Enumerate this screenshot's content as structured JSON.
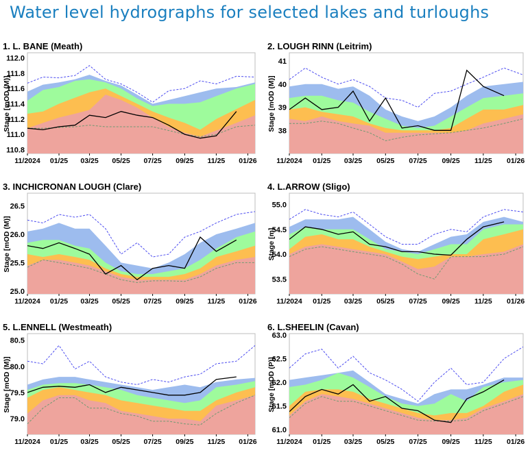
{
  "page_title": "Water level hydrographs for selected lakes and turloughs",
  "colors": {
    "max": "#4b4bf0",
    "min": "#6f9a72",
    "band_blue": "#9dbcee",
    "band_green": "#9efb9c",
    "band_orange": "#fdbe50",
    "band_red": "#eea49d",
    "observed": "#000000",
    "title": "#1a7fbf"
  },
  "chart_data": [
    {
      "type": "area",
      "title": "1. L. BANE (Meath)",
      "ylabel": "Stage [mOD (M)]",
      "ylim": [
        110.75,
        112.05
      ],
      "yticks": [
        "110.8",
        "111.0",
        "111.2",
        "111.4",
        "111.6",
        "111.8",
        "112.0"
      ],
      "xlim": [
        "2024-11-01",
        "2026-01-15"
      ],
      "xticks": [
        {
          "date": "2024-11-01",
          "label": "11/2024"
        },
        {
          "date": "2025-01-01",
          "label": "01/25"
        },
        {
          "date": "2025-03-01",
          "label": "03/25"
        },
        {
          "date": "2025-05-01",
          "label": "05/25"
        },
        {
          "date": "2025-07-01",
          "label": "07/25"
        },
        {
          "date": "2025-09-01",
          "label": "09/25"
        },
        {
          "date": "2025-11-01",
          "label": "11/25"
        },
        {
          "date": "2026-01-01",
          "label": "01/26"
        }
      ],
      "x": [
        "2024-11-01",
        "2024-12-01",
        "2025-01-01",
        "2025-02-01",
        "2025-03-01",
        "2025-04-01",
        "2025-05-01",
        "2025-06-01",
        "2025-07-01",
        "2025-08-01",
        "2025-09-01",
        "2025-10-01",
        "2025-11-01",
        "2025-12-10",
        "2026-01-15"
      ],
      "max": [
        111.67,
        111.75,
        111.74,
        111.77,
        111.9,
        111.72,
        111.66,
        111.55,
        111.42,
        111.57,
        111.6,
        111.7,
        111.66,
        111.76,
        111.75
      ],
      "band_blue": [
        111.56,
        111.65,
        111.68,
        111.72,
        111.78,
        111.7,
        111.64,
        111.52,
        111.4,
        111.45,
        111.5,
        111.55,
        111.6,
        111.62,
        111.68
      ],
      "band_green": [
        111.44,
        111.58,
        111.62,
        111.7,
        111.72,
        111.68,
        111.6,
        111.47,
        111.37,
        111.4,
        111.4,
        111.42,
        111.5,
        111.6,
        111.66
      ],
      "band_orange": [
        111.27,
        111.3,
        111.4,
        111.48,
        111.55,
        111.6,
        111.5,
        111.4,
        111.3,
        111.22,
        111.15,
        111.06,
        111.2,
        111.33,
        111.45
      ],
      "band_red": [
        111.08,
        111.15,
        111.22,
        111.27,
        111.32,
        111.52,
        111.45,
        111.35,
        111.22,
        111.1,
        111.02,
        110.97,
        111.05,
        111.15,
        111.25
      ],
      "min": [
        111.08,
        111.08,
        111.09,
        111.1,
        111.12,
        111.1,
        111.1,
        111.1,
        111.1,
        111.05,
        111.0,
        110.97,
        111.0,
        111.1,
        111.12
      ],
      "observed": [
        111.08,
        111.06,
        111.1,
        111.12,
        111.25,
        111.22,
        111.3,
        111.25,
        111.22,
        111.12,
        111.0,
        110.95,
        110.98,
        111.3,
        null
      ]
    },
    {
      "type": "area",
      "title": "2. LOUGH RINN (Leitrim)",
      "ylabel": "Stage [mOD (M)]",
      "ylim": [
        37.0,
        41.3
      ],
      "yticks": [
        "38",
        "39",
        "40",
        "41"
      ],
      "xlim": [
        "2024-11-01",
        "2026-01-15"
      ],
      "xticks": [
        {
          "date": "2024-11-01",
          "label": "11/2024"
        },
        {
          "date": "2025-01-01",
          "label": "01/25"
        },
        {
          "date": "2025-03-01",
          "label": "03/25"
        },
        {
          "date": "2025-05-01",
          "label": "05/25"
        },
        {
          "date": "2025-07-01",
          "label": "07/25"
        },
        {
          "date": "2025-09-01",
          "label": "09/25"
        },
        {
          "date": "2025-11-01",
          "label": "11/25"
        },
        {
          "date": "2026-01-01",
          "label": "01/26"
        }
      ],
      "x": [
        "2024-11-01",
        "2024-12-01",
        "2025-01-01",
        "2025-02-01",
        "2025-03-01",
        "2025-04-01",
        "2025-05-01",
        "2025-06-01",
        "2025-07-01",
        "2025-08-01",
        "2025-09-01",
        "2025-10-01",
        "2025-11-01",
        "2025-12-10",
        "2026-01-15"
      ],
      "max": [
        40.2,
        40.7,
        40.3,
        40.0,
        40.2,
        39.9,
        39.4,
        39.3,
        39.0,
        39.6,
        39.7,
        40.0,
        40.3,
        40.7,
        40.4
      ],
      "band_blue": [
        39.9,
        40.0,
        40.0,
        39.8,
        39.9,
        39.5,
        38.9,
        38.6,
        38.4,
        38.6,
        39.0,
        39.5,
        39.9,
        40.0,
        40.1
      ],
      "band_green": [
        39.4,
        39.5,
        39.5,
        39.3,
        39.2,
        38.8,
        38.5,
        38.2,
        38.1,
        38.2,
        38.6,
        39.0,
        39.4,
        39.5,
        39.6
      ],
      "band_orange": [
        38.9,
        39.0,
        38.8,
        38.7,
        38.6,
        38.3,
        38.1,
        38.0,
        38.0,
        38.0,
        38.1,
        38.5,
        38.9,
        38.9,
        39.1
      ],
      "band_red": [
        38.5,
        38.4,
        38.6,
        38.4,
        38.3,
        38.2,
        37.9,
        37.9,
        37.9,
        37.9,
        37.9,
        38.0,
        38.3,
        38.5,
        38.7
      ],
      "min": [
        38.3,
        38.3,
        38.4,
        38.3,
        38.1,
        37.9,
        37.55,
        37.7,
        37.8,
        37.85,
        37.9,
        38.0,
        38.1,
        38.3,
        38.5
      ],
      "observed": [
        38.9,
        39.4,
        38.9,
        39.0,
        39.7,
        38.4,
        39.4,
        38.1,
        38.2,
        38.0,
        38.0,
        40.6,
        39.9,
        39.5,
        null
      ]
    },
    {
      "type": "area",
      "title": "3. INCHICRONAN LOUGH (Clare)",
      "ylabel": "Stage [mOD (M)]",
      "ylim": [
        24.95,
        26.7
      ],
      "yticks": [
        "25.0",
        "25.5",
        "26.0",
        "26.5"
      ],
      "xlim": [
        "2024-11-01",
        "2026-01-15"
      ],
      "xticks": [
        {
          "date": "2024-11-01",
          "label": "11/2024"
        },
        {
          "date": "2025-01-01",
          "label": "01/25"
        },
        {
          "date": "2025-03-01",
          "label": "03/25"
        },
        {
          "date": "2025-05-01",
          "label": "05/25"
        },
        {
          "date": "2025-07-01",
          "label": "07/25"
        },
        {
          "date": "2025-09-01",
          "label": "09/25"
        },
        {
          "date": "2025-11-01",
          "label": "11/25"
        },
        {
          "date": "2026-01-01",
          "label": "01/26"
        }
      ],
      "x": [
        "2024-11-01",
        "2024-12-01",
        "2025-01-01",
        "2025-02-01",
        "2025-03-01",
        "2025-04-01",
        "2025-05-01",
        "2025-06-01",
        "2025-07-01",
        "2025-08-01",
        "2025-09-01",
        "2025-10-01",
        "2025-11-01",
        "2025-12-10",
        "2026-01-15"
      ],
      "max": [
        26.25,
        26.2,
        26.35,
        26.3,
        26.35,
        26.1,
        25.65,
        25.85,
        25.6,
        25.65,
        25.95,
        26.05,
        26.2,
        26.35,
        26.4
      ],
      "band_blue": [
        26.05,
        26.1,
        26.2,
        26.1,
        26.1,
        25.8,
        25.5,
        25.45,
        25.4,
        25.5,
        25.65,
        25.85,
        26.0,
        26.1,
        26.2
      ],
      "band_green": [
        25.85,
        25.9,
        25.9,
        25.8,
        25.75,
        25.5,
        25.35,
        25.3,
        25.3,
        25.35,
        25.4,
        25.55,
        25.75,
        25.95,
        26.05
      ],
      "band_orange": [
        25.65,
        25.6,
        25.65,
        25.6,
        25.55,
        25.4,
        25.3,
        25.25,
        25.25,
        25.25,
        25.3,
        25.4,
        25.6,
        25.7,
        25.8
      ],
      "band_red": [
        25.45,
        25.55,
        25.55,
        25.5,
        25.45,
        25.35,
        25.25,
        25.2,
        25.2,
        25.2,
        25.2,
        25.3,
        25.45,
        25.55,
        25.6
      ],
      "min": [
        25.42,
        25.55,
        25.5,
        25.45,
        25.4,
        25.3,
        25.2,
        25.15,
        25.18,
        25.18,
        25.17,
        25.25,
        25.4,
        25.5,
        25.5
      ],
      "observed": [
        25.8,
        25.75,
        25.85,
        25.75,
        25.65,
        25.3,
        25.45,
        25.2,
        25.4,
        25.45,
        25.4,
        25.95,
        25.7,
        25.9,
        null
      ]
    },
    {
      "type": "area",
      "title": "4. L.ARROW (Sligo)",
      "ylabel": "Stage [m]",
      "ylim": [
        53.2,
        55.2
      ],
      "yticks": [
        "53.5",
        "54.0",
        "54.5",
        "55.0"
      ],
      "xlim": [
        "2024-11-01",
        "2026-01-15"
      ],
      "xticks": [
        {
          "date": "2024-11-01",
          "label": "11/2024"
        },
        {
          "date": "2025-01-01",
          "label": "01/25"
        },
        {
          "date": "2025-03-01",
          "label": "03/25"
        },
        {
          "date": "2025-05-01",
          "label": "05/25"
        },
        {
          "date": "2025-07-01",
          "label": "07/25"
        },
        {
          "date": "2025-09-01",
          "label": "09/25"
        },
        {
          "date": "2025-11-01",
          "label": "11/25"
        },
        {
          "date": "2026-01-01",
          "label": "01/26"
        }
      ],
      "x": [
        "2024-11-01",
        "2024-12-01",
        "2025-01-01",
        "2025-02-01",
        "2025-03-01",
        "2025-04-01",
        "2025-05-01",
        "2025-06-01",
        "2025-07-01",
        "2025-08-01",
        "2025-09-01",
        "2025-10-01",
        "2025-11-01",
        "2025-12-10",
        "2026-01-15"
      ],
      "max": [
        54.7,
        54.9,
        54.8,
        54.75,
        54.85,
        54.6,
        54.35,
        54.2,
        54.2,
        54.4,
        54.5,
        54.45,
        54.75,
        54.9,
        54.85
      ],
      "band_blue": [
        54.55,
        54.7,
        54.7,
        54.7,
        54.75,
        54.5,
        54.25,
        54.1,
        54.05,
        54.2,
        54.35,
        54.4,
        54.65,
        54.75,
        54.65
      ],
      "band_green": [
        54.4,
        54.55,
        54.5,
        54.5,
        54.5,
        54.3,
        54.1,
        54.05,
        54.0,
        54.1,
        54.2,
        54.2,
        54.5,
        54.6,
        54.6
      ],
      "band_orange": [
        54.1,
        54.35,
        54.4,
        54.3,
        54.3,
        54.15,
        54.05,
        53.95,
        53.9,
        53.95,
        54.0,
        54.0,
        54.3,
        54.4,
        54.5
      ],
      "band_red": [
        54.0,
        54.15,
        54.2,
        54.15,
        54.1,
        54.05,
        54.0,
        53.85,
        53.7,
        53.75,
        53.95,
        53.95,
        54.0,
        54.05,
        54.2
      ],
      "min": [
        53.95,
        54.1,
        54.15,
        54.1,
        54.05,
        54.0,
        53.95,
        53.8,
        53.6,
        53.5,
        53.95,
        53.95,
        53.95,
        54.0,
        54.15
      ],
      "observed": [
        54.3,
        54.55,
        54.5,
        54.4,
        54.45,
        54.2,
        54.15,
        54.05,
        54.05,
        54.0,
        53.98,
        54.3,
        54.55,
        54.65,
        null
      ]
    },
    {
      "type": "area",
      "title": "5. L.ENNELL (Westmeath)",
      "ylabel": "Stage [mOD (M)]",
      "ylim": [
        78.7,
        80.6
      ],
      "yticks": [
        "79.0",
        "79.5",
        "80.0",
        "80.5"
      ],
      "xlim": [
        "2024-11-01",
        "2026-01-15"
      ],
      "xticks": [
        {
          "date": "2024-11-01",
          "label": "11/2024"
        },
        {
          "date": "2025-01-01",
          "label": "01/25"
        },
        {
          "date": "2025-03-01",
          "label": "03/25"
        },
        {
          "date": "2025-05-01",
          "label": "05/25"
        },
        {
          "date": "2025-07-01",
          "label": "07/25"
        },
        {
          "date": "2025-09-01",
          "label": "09/25"
        },
        {
          "date": "2025-11-01",
          "label": "11/25"
        },
        {
          "date": "2026-01-01",
          "label": "01/26"
        }
      ],
      "x": [
        "2024-11-01",
        "2024-12-01",
        "2025-01-01",
        "2025-02-01",
        "2025-03-01",
        "2025-04-01",
        "2025-05-01",
        "2025-06-01",
        "2025-07-01",
        "2025-08-01",
        "2025-09-01",
        "2025-10-01",
        "2025-11-01",
        "2025-12-10",
        "2026-01-15"
      ],
      "max": [
        80.1,
        80.05,
        80.4,
        79.95,
        80.1,
        79.8,
        79.7,
        79.65,
        79.75,
        79.7,
        79.8,
        79.85,
        80.05,
        80.1,
        80.4
      ],
      "band_blue": [
        79.65,
        79.75,
        79.8,
        79.8,
        79.75,
        79.7,
        79.65,
        79.6,
        79.55,
        79.6,
        79.65,
        79.6,
        79.7,
        79.75,
        79.78
      ],
      "band_green": [
        79.55,
        79.65,
        79.68,
        79.68,
        79.65,
        79.6,
        79.55,
        79.45,
        79.4,
        79.35,
        79.3,
        79.35,
        79.6,
        79.65,
        79.72
      ],
      "band_orange": [
        79.4,
        79.55,
        79.6,
        79.55,
        79.5,
        79.45,
        79.35,
        79.3,
        79.25,
        79.2,
        79.15,
        79.15,
        79.35,
        79.5,
        79.6
      ],
      "band_red": [
        79.1,
        79.35,
        79.45,
        79.45,
        79.35,
        79.3,
        79.15,
        79.1,
        79.05,
        79.0,
        79.0,
        78.95,
        79.25,
        79.35,
        79.45
      ],
      "min": [
        78.9,
        79.2,
        79.4,
        79.4,
        79.2,
        79.2,
        79.1,
        79.05,
        78.95,
        78.95,
        78.9,
        78.88,
        79.1,
        79.3,
        79.45
      ],
      "observed": [
        79.5,
        79.6,
        79.62,
        79.6,
        79.65,
        79.5,
        79.6,
        79.55,
        79.5,
        79.45,
        79.45,
        79.5,
        79.75,
        79.8,
        null
      ]
    },
    {
      "type": "area",
      "title": "6. L.SHEELIN (Cavan)",
      "ylabel": "Stage [mOD (P)]",
      "ylim": [
        60.9,
        63.0
      ],
      "yticks": [
        "61.0",
        "61.5",
        "62.0",
        "62.5",
        "63.0"
      ],
      "xlim": [
        "2024-11-01",
        "2026-01-15"
      ],
      "xticks": [
        {
          "date": "2024-11-01",
          "label": "11/2024"
        },
        {
          "date": "2025-01-01",
          "label": "01/25"
        },
        {
          "date": "2025-03-01",
          "label": "03/25"
        },
        {
          "date": "2025-05-01",
          "label": "05/25"
        },
        {
          "date": "2025-07-01",
          "label": "07/25"
        },
        {
          "date": "2025-09-01",
          "label": "09/25"
        },
        {
          "date": "2025-11-01",
          "label": "11/25"
        },
        {
          "date": "2026-01-01",
          "label": "01/26"
        }
      ],
      "x": [
        "2024-11-01",
        "2024-12-01",
        "2025-01-01",
        "2025-02-01",
        "2025-03-01",
        "2025-04-01",
        "2025-05-01",
        "2025-06-01",
        "2025-07-01",
        "2025-08-01",
        "2025-09-01",
        "2025-10-01",
        "2025-11-01",
        "2025-12-10",
        "2026-01-15"
      ],
      "max": [
        62.3,
        62.6,
        62.7,
        62.3,
        62.55,
        62.2,
        62.05,
        61.85,
        61.6,
        62.0,
        62.3,
        61.95,
        62.0,
        62.5,
        62.75
      ],
      "band_blue": [
        62.05,
        62.1,
        62.15,
        62.2,
        62.25,
        62.0,
        61.75,
        61.65,
        61.55,
        61.75,
        61.85,
        61.85,
        61.95,
        62.1,
        62.1
      ],
      "band_green": [
        61.9,
        61.95,
        62.05,
        62.2,
        62.1,
        61.9,
        61.7,
        61.55,
        61.5,
        61.55,
        61.75,
        61.6,
        61.9,
        62.0,
        62.05
      ],
      "band_orange": [
        61.5,
        61.8,
        61.85,
        61.85,
        61.8,
        61.65,
        61.55,
        61.45,
        61.35,
        61.3,
        61.35,
        61.35,
        61.5,
        61.8,
        61.95
      ],
      "band_red": [
        61.3,
        61.6,
        61.75,
        61.7,
        61.65,
        61.55,
        61.45,
        61.35,
        61.25,
        61.2,
        61.2,
        61.25,
        61.45,
        61.6,
        61.75
      ],
      "min": [
        61.25,
        61.55,
        61.7,
        61.6,
        61.6,
        61.5,
        61.4,
        61.3,
        61.2,
        61.18,
        61.18,
        61.2,
        61.4,
        61.55,
        61.7
      ],
      "observed": [
        61.38,
        61.7,
        61.85,
        61.75,
        61.95,
        61.6,
        61.7,
        61.45,
        61.4,
        61.2,
        61.15,
        61.65,
        61.8,
        62.05,
        null
      ]
    }
  ]
}
